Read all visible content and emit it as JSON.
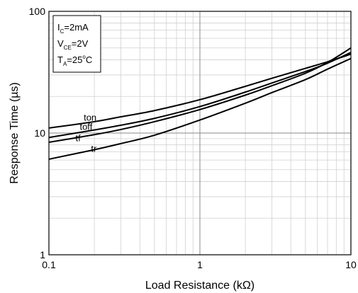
{
  "chart_data": {
    "type": "line",
    "title": "",
    "xlabel": "Load Resistance (kΩ)",
    "ylabel": "Response Time (µs)",
    "x_scale": "log",
    "y_scale": "log",
    "xlim": [
      0.1,
      10
    ],
    "ylim": [
      1,
      100
    ],
    "x_ticks": [
      {
        "value": 0.1,
        "label": "0.1"
      },
      {
        "value": 1,
        "label": "1"
      },
      {
        "value": 10,
        "label": "10"
      }
    ],
    "y_ticks": [
      {
        "value": 1,
        "label": "1"
      },
      {
        "value": 10,
        "label": "10"
      },
      {
        "value": 100,
        "label": "100"
      }
    ],
    "grid": true,
    "conditions": [
      {
        "main": "I",
        "sub": "C",
        "rest": "=2mA"
      },
      {
        "main": "V",
        "sub": "CE",
        "rest": "=2V"
      },
      {
        "main": "T",
        "sub": "A",
        "rest": "=25",
        "sup": "o",
        "tail": "C"
      }
    ],
    "series": [
      {
        "name": "ton",
        "x": [
          0.1,
          0.2,
          0.3,
          0.5,
          1,
          2,
          3,
          5,
          7,
          10
        ],
        "y": [
          11,
          12.4,
          13.6,
          15.3,
          18.8,
          24.2,
          28.2,
          34,
          38.5,
          44.5
        ]
      },
      {
        "name": "toff",
        "x": [
          0.1,
          0.2,
          0.3,
          0.5,
          1,
          2,
          3,
          5,
          7,
          10
        ],
        "y": [
          9.2,
          10.6,
          11.6,
          13.2,
          16.5,
          21.7,
          25.8,
          32,
          37.5,
          46
        ]
      },
      {
        "name": "tf",
        "x": [
          0.1,
          0.2,
          0.3,
          0.5,
          1,
          2,
          3,
          5,
          7,
          10
        ],
        "y": [
          8.4,
          9.7,
          10.7,
          12.4,
          15.6,
          20.5,
          24.5,
          31,
          38,
          50
        ]
      },
      {
        "name": "tr",
        "x": [
          0.1,
          0.2,
          0.3,
          0.5,
          1,
          2,
          3,
          5,
          7,
          10
        ],
        "y": [
          6.1,
          7.3,
          8.2,
          9.6,
          12.8,
          17.6,
          21.5,
          27.5,
          33.5,
          41
        ]
      }
    ],
    "series_labels": [
      {
        "series": "ton",
        "x": 0.17,
        "y": 12.6
      },
      {
        "series": "toff",
        "x": 0.16,
        "y": 10.6
      },
      {
        "series": "tf",
        "x": 0.15,
        "y": 8.6
      },
      {
        "series": "tr",
        "x": 0.19,
        "y": 7.0
      }
    ]
  }
}
